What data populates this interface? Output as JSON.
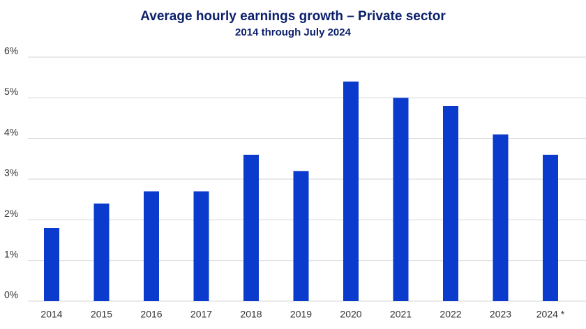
{
  "chart_data": {
    "type": "bar",
    "title": "Average hourly earnings growth – Private sector",
    "subtitle": "2014 through July 2024",
    "categories": [
      "2014",
      "2015",
      "2016",
      "2017",
      "2018",
      "2019",
      "2020",
      "2021",
      "2022",
      "2023",
      "2024 *"
    ],
    "values": [
      1.8,
      2.4,
      2.7,
      2.7,
      3.6,
      3.2,
      5.4,
      5.0,
      4.8,
      4.1,
      3.6
    ],
    "color": "#0a3bcc",
    "ylim": [
      0,
      6
    ],
    "yticks": [
      {
        "value": 0,
        "label": "0%"
      },
      {
        "value": 1,
        "label": "1%"
      },
      {
        "value": 2,
        "label": "2%"
      },
      {
        "value": 3,
        "label": "3%"
      },
      {
        "value": 4,
        "label": "4%"
      },
      {
        "value": 5,
        "label": "5%"
      },
      {
        "value": 6,
        "label": "6%"
      }
    ],
    "grid": true
  }
}
